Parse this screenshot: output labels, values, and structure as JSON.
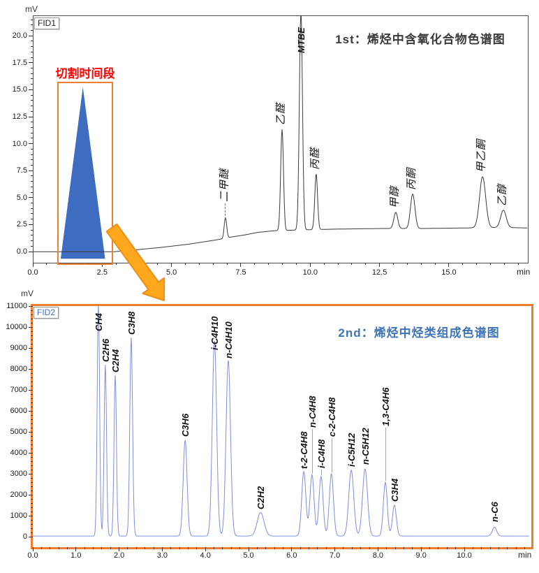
{
  "colors": {
    "cut_box": "#F08030",
    "cut_peak_fill": "#3D6CC0",
    "cut_label_red": "#FF0000",
    "arrow_fill": "#FFA81E",
    "arrow_stroke": "#ED8F1C",
    "panel2_border": "#F07E2E",
    "trace1": "#3a3a3a",
    "trace2": "#7E8EE0",
    "title1": "#3a3a3a",
    "title2": "#3E74B8",
    "fid1_text": "#222222",
    "fid2_text": "#4472C4"
  },
  "chart_data": [
    {
      "type": "line",
      "detector": "FID1",
      "title": "1st：烯烃中含氧化合物色谱图",
      "x_unit": "min",
      "y_unit": "mV",
      "x_range": [
        0,
        17.8
      ],
      "y_range": [
        -1.0,
        21.9
      ],
      "x_ticks": {
        "values": [
          0,
          2.5,
          5,
          7.5,
          10,
          12.5,
          15
        ],
        "labels": [
          "0.0",
          "2.5",
          "5.0",
          "7.5",
          "10.0",
          "12.5",
          "15.0"
        ],
        "minor_step": 0.5
      },
      "y_ticks": {
        "values": [
          0,
          2.5,
          5,
          7.5,
          10,
          12.5,
          15,
          17.5,
          20
        ],
        "labels": [
          "0.0",
          "2.5",
          "5.0",
          "7.5",
          "10.0",
          "12.5",
          "15.0",
          "17.5",
          "20.0"
        ],
        "minor_step": 0.5
      },
      "baseline": [
        [
          0,
          0.05
        ],
        [
          2.9,
          0.05
        ],
        [
          3.6,
          0.2
        ],
        [
          4.6,
          0.45
        ],
        [
          5.6,
          0.75
        ],
        [
          6.6,
          1.15
        ],
        [
          7.1,
          1.4
        ],
        [
          7.6,
          1.6
        ],
        [
          8.1,
          1.85
        ],
        [
          8.7,
          2.0
        ],
        [
          9.4,
          2.05
        ],
        [
          10.1,
          2.1
        ],
        [
          11,
          2.15
        ],
        [
          12.5,
          2.2
        ],
        [
          14,
          2.2
        ],
        [
          15.5,
          2.25
        ],
        [
          17,
          2.3
        ],
        [
          17.8,
          2.25
        ]
      ],
      "peaks": [
        {
          "name": "二甲醚",
          "time_min": 6.92,
          "height_mV": 3.2,
          "sigma": 0.045,
          "label_mV": 4.6
        },
        {
          "name": "乙醛",
          "time_min": 8.96,
          "height_mV": 11.4,
          "sigma": 0.05,
          "label_mV": 11.7
        },
        {
          "name": "MTBE",
          "time_min": 9.64,
          "height_mV": 22.4,
          "sigma": 0.055,
          "label_mV": 18.4,
          "bold": true
        },
        {
          "name": "丙醛",
          "time_min": 10.19,
          "height_mV": 7.3,
          "sigma": 0.05,
          "label_mV": 7.6
        },
        {
          "name": "甲醇",
          "time_min": 13.06,
          "height_mV": 3.7,
          "sigma": 0.07,
          "label_mV": 4.0
        },
        {
          "name": "丙酮",
          "time_min": 13.67,
          "height_mV": 5.4,
          "sigma": 0.08,
          "label_mV": 5.7
        },
        {
          "name": "甲乙酮",
          "time_min": 16.19,
          "height_mV": 7.0,
          "sigma": 0.11,
          "label_mV": 7.3
        },
        {
          "name": "乙醇",
          "time_min": 16.94,
          "height_mV": 3.9,
          "sigma": 0.1,
          "label_mV": 4.2
        }
      ],
      "cut_region": {
        "label": "切割时间段",
        "start_min": 0.88,
        "end_min": 2.85,
        "peak": {
          "apex_min": 1.78,
          "apex_mV": 15.3,
          "base_start_min": 0.98,
          "base_end_min": 2.58,
          "base_mV": -0.6
        }
      }
    },
    {
      "type": "line",
      "detector": "FID2",
      "title": "2nd：烯烃中烃类组成色谱图",
      "x_unit": "min",
      "y_unit": "mV",
      "x_range": [
        0,
        11.5
      ],
      "y_range": [
        -450,
        11030
      ],
      "x_ticks": {
        "values": [
          0,
          1,
          2,
          3,
          4,
          5,
          6,
          7,
          8,
          9,
          10
        ],
        "labels": [
          "0.0",
          "1.0",
          "2.0",
          "3.0",
          "4.0",
          "5.0",
          "6.0",
          "7.0",
          "8.0",
          "9.0",
          "10.0"
        ],
        "minor_step": 0.2
      },
      "y_ticks": {
        "values": [
          0,
          1000,
          2000,
          3000,
          4000,
          5000,
          6000,
          7000,
          8000,
          9000,
          10000,
          11000
        ],
        "labels": [
          "0",
          "1000",
          "2000",
          "3000",
          "4000",
          "5000",
          "6000",
          "7000",
          "8000",
          "9000",
          "10000",
          "11000"
        ],
        "minor_step": 200
      },
      "baseline": [
        [
          0,
          30
        ],
        [
          11.5,
          30
        ]
      ],
      "peaks": [
        {
          "name": "CH4",
          "time_min": 1.52,
          "height_mV": 11100,
          "sigma": 0.028,
          "label_mV": 9800
        },
        {
          "name": "C2H6",
          "time_min": 1.68,
          "height_mV": 8200,
          "sigma": 0.028,
          "label_mV": 8350
        },
        {
          "name": "C2H4",
          "time_min": 1.91,
          "height_mV": 7700,
          "sigma": 0.028,
          "label_mV": 7850
        },
        {
          "name": "C3H8",
          "time_min": 2.28,
          "height_mV": 9500,
          "sigma": 0.032,
          "label_mV": 9650
        },
        {
          "name": "C3H6",
          "time_min": 3.53,
          "height_mV": 4600,
          "sigma": 0.045,
          "label_mV": 4760
        },
        {
          "name": "i-C4H10",
          "time_min": 4.21,
          "height_mV": 9350,
          "sigma": 0.05,
          "label_mV": 8900
        },
        {
          "name": "n-C4H10",
          "time_min": 4.53,
          "height_mV": 8400,
          "sigma": 0.052,
          "label_mV": 8500
        },
        {
          "name": "C2H2",
          "time_min": 5.28,
          "height_mV": 1150,
          "sigma": 0.08,
          "label_mV": 1300
        },
        {
          "name": "t-2-C4H8",
          "time_min": 6.28,
          "height_mV": 3100,
          "sigma": 0.048,
          "label_mV": 3250
        },
        {
          "name": "n-C4H8",
          "time_min": 6.47,
          "height_mV": 2950,
          "sigma": 0.048,
          "label_mV": 5200
        },
        {
          "name": "i-C4H8",
          "time_min": 6.68,
          "height_mV": 2870,
          "sigma": 0.048,
          "label_mV": 3280
        },
        {
          "name": "c-2-C4H8",
          "time_min": 6.92,
          "height_mV": 3000,
          "sigma": 0.048,
          "label_mV": 4780
        },
        {
          "name": "i-C5H12",
          "time_min": 7.38,
          "height_mV": 3170,
          "sigma": 0.058,
          "label_mV": 3340
        },
        {
          "name": "n-C5H12",
          "time_min": 7.7,
          "height_mV": 3230,
          "sigma": 0.058,
          "label_mV": 3440
        },
        {
          "name": "1,3-C4H6",
          "time_min": 8.17,
          "height_mV": 2600,
          "sigma": 0.045,
          "label_mV": 5280
        },
        {
          "name": "C3H4",
          "time_min": 8.38,
          "height_mV": 1500,
          "sigma": 0.045,
          "label_mV": 1680
        },
        {
          "name": "n-C6",
          "time_min": 10.7,
          "height_mV": 450,
          "sigma": 0.05,
          "label_mV": 700
        }
      ]
    }
  ]
}
